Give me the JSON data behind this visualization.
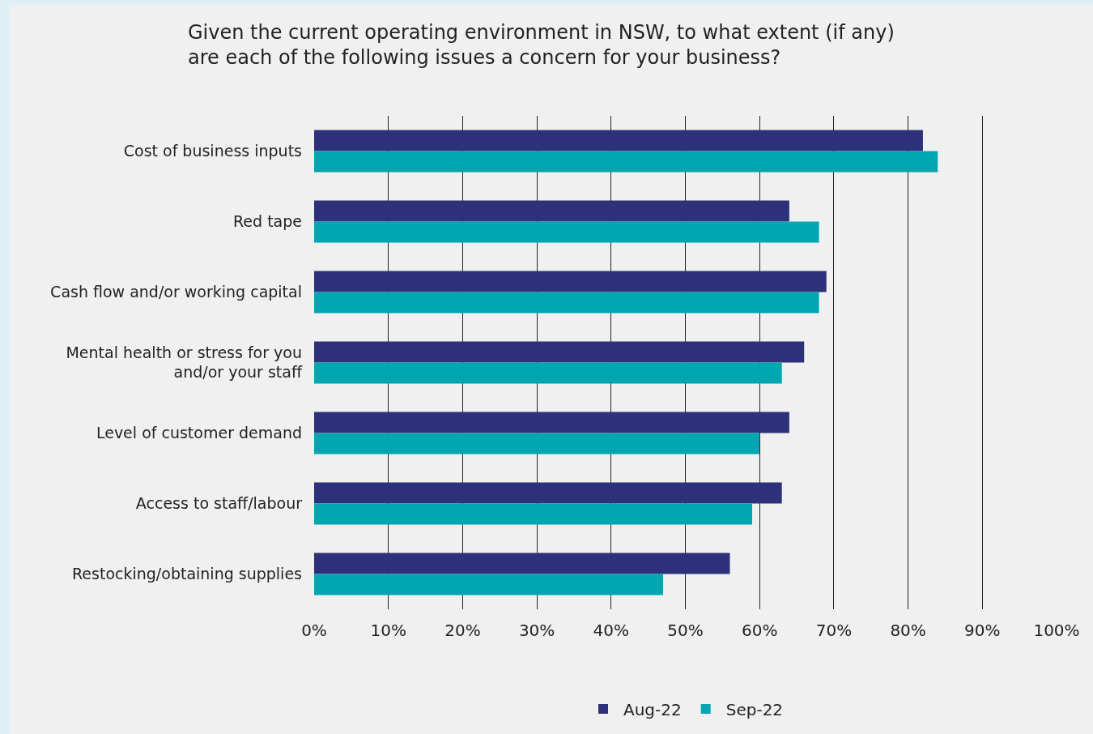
{
  "chart_data": {
    "type": "bar",
    "orientation": "horizontal",
    "title": "Given the current operating environment in NSW, to what extent (if any) are each of the following issues a concern for your business?",
    "categories": [
      "Cost of business inputs",
      "Red tape",
      "Cash flow and/or working capital",
      "Mental health or stress for you and/or your staff",
      "Level of customer demand",
      "Access to staff/labour",
      "Restocking/obtaining supplies"
    ],
    "series": [
      {
        "name": "Aug-22",
        "color": "#2d3179",
        "values": [
          82,
          64,
          69,
          66,
          64,
          63,
          56
        ]
      },
      {
        "name": "Sep-22",
        "color": "#00a6b0",
        "values": [
          84,
          68,
          68,
          63,
          60,
          59,
          47
        ]
      }
    ],
    "xlim": [
      0,
      100
    ],
    "xticks": [
      {
        "value": 0,
        "label": "0%"
      },
      {
        "value": 10,
        "label": "10%"
      },
      {
        "value": 20,
        "label": "20%"
      },
      {
        "value": 30,
        "label": "30%"
      },
      {
        "value": 40,
        "label": "40%"
      },
      {
        "value": 50,
        "label": "50%"
      },
      {
        "value": 60,
        "label": "60%"
      },
      {
        "value": 70,
        "label": "70%"
      },
      {
        "value": 80,
        "label": "80%"
      },
      {
        "value": 90,
        "label": "90%"
      },
      {
        "value": 100,
        "label": "100%"
      }
    ],
    "grid": "x",
    "legend": "bottom"
  }
}
